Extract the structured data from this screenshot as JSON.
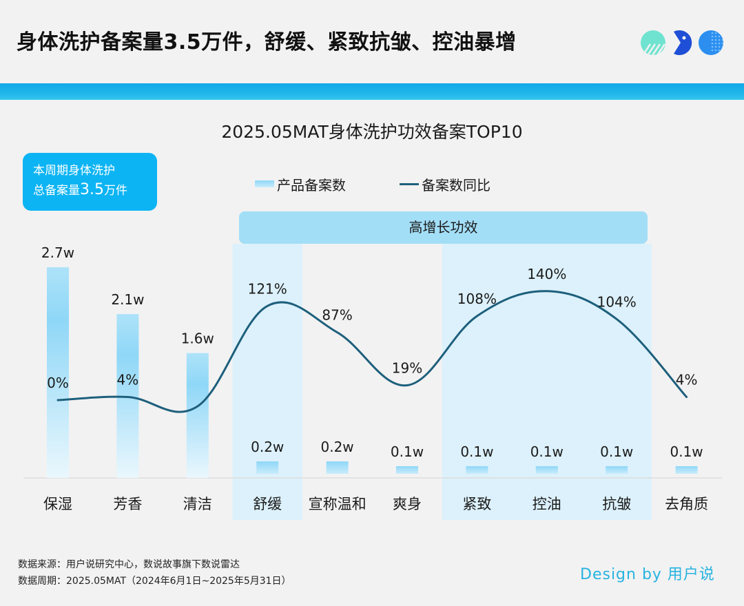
{
  "header": {
    "headline": "身体洗护备案量3.5万件，舒缓、紧致抗皱、控油暴增",
    "logo_icons": [
      "striped-circle-icon",
      "pacman-icon",
      "dotted-circle-icon"
    ]
  },
  "colors": {
    "band": "#1fb6ea",
    "total_box": "#0db4f3",
    "highlight_banner": "#a3def7",
    "highlight_column": "#dcf1fb",
    "bar_top": "#8fd7f7",
    "bar_bottom": "#eaf7fd",
    "line": "#1d5f7c",
    "design_by": "#27b3e0"
  },
  "summary_box": {
    "line1": "本周期身体洗护",
    "line2_prefix": "总备案量",
    "line2_value": "3.5",
    "line2_suffix": "万件"
  },
  "highlight": {
    "label": "高增长功效",
    "categories": [
      "舒缓",
      "紧致",
      "控油",
      "抗皱"
    ]
  },
  "chart_data": {
    "type": "bar",
    "title": "2025.05MAT身体洗护功效备案TOP10",
    "xlabel": "",
    "ylabel": "",
    "grid": false,
    "legend_position": "top-center",
    "categories": [
      "保湿",
      "芳香",
      "清洁",
      "舒缓",
      "宣称温和",
      "爽身",
      "紧致",
      "控油",
      "抗皱",
      "去角质"
    ],
    "series": [
      {
        "name": "产品备案数",
        "type": "bar",
        "unit": "w",
        "values": [
          2.7,
          2.1,
          1.6,
          0.2,
          0.2,
          0.1,
          0.1,
          0.1,
          0.1,
          0.1
        ],
        "labels": [
          "2.7w",
          "2.1w",
          "1.6w",
          "0.2w",
          "0.2w",
          "0.1w",
          "0.1w",
          "0.1w",
          "0.1w",
          "0.1w"
        ]
      },
      {
        "name": "备案数同比",
        "type": "line",
        "unit": "%",
        "values": [
          0,
          4,
          null,
          121,
          87,
          19,
          108,
          140,
          104,
          4
        ],
        "labels": [
          "0%",
          "4%",
          "",
          "121%",
          "87%",
          "19%",
          "108%",
          "140%",
          "104%",
          "4%"
        ]
      }
    ]
  },
  "footer": {
    "source": "数据来源：用户说研究中心，数说故事旗下数说雷达",
    "period": "数据周期：2025.05MAT（2024年6月1日~2025年5月31日）",
    "design_by": "Design by 用户说"
  }
}
